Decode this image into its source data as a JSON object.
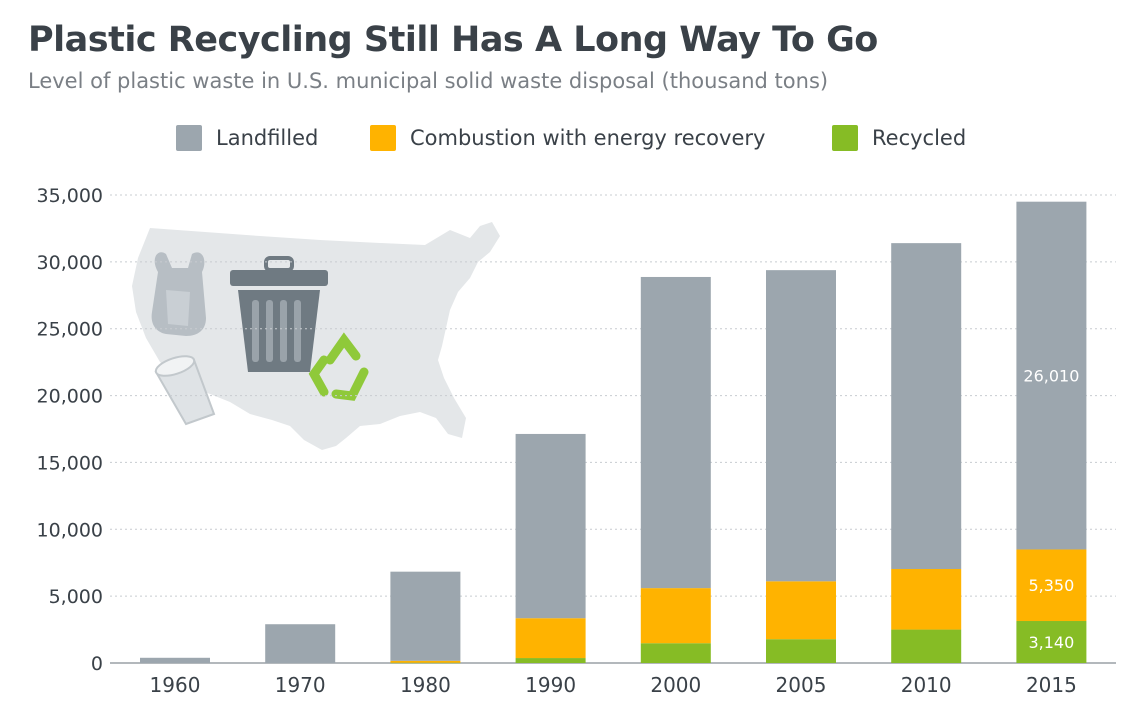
{
  "title": "Plastic Recycling Still Has A Long Way To Go",
  "subtitle": "Level of plastic waste in U.S. municipal solid waste disposal (thousand tons)",
  "legend": {
    "landfilled": "Landfilled",
    "combustion": "Combustion with energy recovery",
    "recycled": "Recycled"
  },
  "colors": {
    "landfilled": "#9ca6ae",
    "combustion": "#ffb300",
    "recycled": "#86bc25",
    "grid": "#c8ccd0",
    "map": "#e4e7e9"
  },
  "chart_data": {
    "type": "bar",
    "stacked": true,
    "title": "Plastic Recycling Still Has A Long Way To Go",
    "subtitle": "Level of plastic waste in U.S. municipal solid waste disposal (thousand tons)",
    "xlabel": "",
    "ylabel": "thousand tons",
    "ylim": [
      0,
      35000
    ],
    "yticks": [
      0,
      5000,
      10000,
      15000,
      20000,
      25000,
      30000,
      35000
    ],
    "ytick_labels": [
      "0",
      "5,000",
      "10,000",
      "15,000",
      "20,000",
      "25,000",
      "30,000",
      "35,000"
    ],
    "categories": [
      "1960",
      "1970",
      "1980",
      "1990",
      "2000",
      "2005",
      "2010",
      "2015"
    ],
    "series": [
      {
        "name": "Recycled",
        "color": "#86bc25",
        "values": [
          0,
          0,
          20,
          370,
          1480,
          1780,
          2500,
          3140
        ]
      },
      {
        "name": "Combustion with energy recovery",
        "color": "#ffb300",
        "values": [
          0,
          0,
          140,
          2980,
          4120,
          4330,
          4530,
          5350
        ]
      },
      {
        "name": "Landfilled",
        "color": "#9ca6ae",
        "values": [
          390,
          2900,
          6670,
          13780,
          23270,
          23270,
          24370,
          26010
        ]
      }
    ],
    "data_labels": [
      {
        "category": "2015",
        "series": "Landfilled",
        "text": "26,010"
      },
      {
        "category": "2015",
        "series": "Combustion with energy recovery",
        "text": "5,350"
      },
      {
        "category": "2015",
        "series": "Recycled",
        "text": "3,140"
      }
    ],
    "grid": true,
    "legend_position": "top-center"
  }
}
